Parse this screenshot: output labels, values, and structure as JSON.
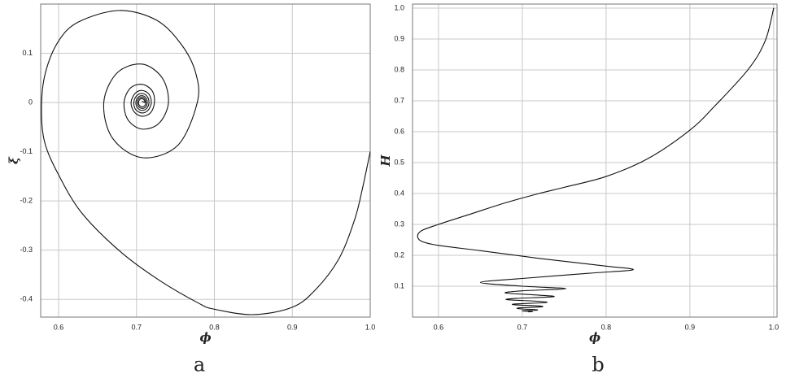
{
  "chart_data": [
    {
      "type": "line",
      "caption": "a",
      "x_label": "ϕ",
      "y_label": "ξ",
      "xlim": [
        0.577,
        1.0
      ],
      "ylim": [
        -0.436,
        0.2
      ],
      "xticks": [
        0.6,
        0.7,
        0.8,
        0.9,
        {
          "value": 1,
          "label": "1.0"
        }
      ],
      "yticks": [
        0.1,
        0,
        -0.1,
        -0.2,
        -0.3,
        -0.4
      ],
      "grid": true,
      "color": "#111",
      "x": [
        1.0,
        0.99,
        0.98,
        0.96,
        0.93,
        0.9,
        0.85,
        0.8,
        0.78,
        0.73,
        0.68,
        0.63,
        0.6,
        0.582,
        0.578,
        0.583,
        0.6,
        0.626,
        0.678,
        0.726,
        0.758,
        0.776,
        0.778,
        0.753,
        0.707,
        0.669,
        0.658,
        0.675,
        0.707,
        0.733,
        0.741,
        0.729,
        0.707,
        0.689,
        0.684,
        0.692,
        0.707,
        0.72,
        0.723,
        0.718,
        0.707,
        0.697,
        0.693,
        0.698,
        0.707,
        0.716,
        0.719,
        0.715,
        0.707,
        0.699,
        0.6966,
        0.7,
        0.707,
        0.7136,
        0.716,
        0.7132,
        0.707,
        0.7013,
        0.6992,
        0.7017,
        0.707,
        0.712,
        0.7138,
        0.7117,
        0.707,
        0.7027,
        0.7011,
        0.703,
        0.707,
        0.7107,
        0.712,
        0.7104,
        0.707,
        0.7038,
        0.7026,
        0.704,
        0.707,
        0.7098,
        0.7108,
        0.707
      ],
      "values": [
        -0.1,
        -0.175,
        -0.238,
        -0.317,
        -0.38,
        -0.416,
        -0.431,
        -0.42,
        -0.408,
        -0.362,
        -0.304,
        -0.225,
        -0.147,
        -0.08,
        -0.01,
        0.06,
        0.125,
        0.164,
        0.187,
        0.167,
        0.117,
        0.06,
        0,
        -0.087,
        -0.112,
        -0.072,
        0,
        0.06,
        0.078,
        0.05,
        0,
        -0.042,
        -0.054,
        -0.035,
        0,
        0.029,
        0.037,
        0.024,
        0,
        -0.021,
        -0.028,
        -0.019,
        0,
        0.018,
        0.0245,
        0.017,
        0,
        -0.0156,
        -0.0213,
        -0.0145,
        0,
        0.0134,
        0.0184,
        0.0126,
        0,
        -0.0117,
        -0.016,
        -0.0109,
        0,
        0.0101,
        0.0139,
        0.0094,
        0,
        -0.0089,
        -0.012,
        -0.0082,
        0,
        0.0077,
        0.0105,
        0.0071,
        0,
        -0.0064,
        -0.0089,
        -0.006,
        0,
        0.0056,
        0.0078,
        0.0052,
        0,
        0.003
      ]
    },
    {
      "type": "line",
      "caption": "b",
      "x_label": "ϕ",
      "y_label": "H",
      "xlim": [
        0.569,
        1.004
      ],
      "ylim": [
        0,
        1.013
      ],
      "xticks": [
        0.6,
        0.7,
        0.8,
        0.9,
        {
          "value": 1,
          "label": "1.0"
        }
      ],
      "yticks": [
        0.1,
        0.2,
        0.3,
        0.4,
        0.5,
        0.6,
        0.7,
        0.8,
        0.9,
        {
          "value": 1,
          "label": "1.0"
        }
      ],
      "grid": true,
      "color": "#111",
      "x": [
        1.0,
        0.99,
        0.97,
        0.93,
        0.9,
        0.85,
        0.8,
        0.75,
        0.72,
        0.68,
        0.64,
        0.6,
        0.58,
        0.575,
        0.58,
        0.6,
        0.65,
        0.72,
        0.8,
        0.832,
        0.78,
        0.7,
        0.65,
        0.7,
        0.752,
        0.7,
        0.68,
        0.72,
        0.737,
        0.69,
        0.683,
        0.72,
        0.728,
        0.695,
        0.69,
        0.72,
        0.722,
        0.697,
        0.696,
        0.716,
        0.716,
        0.7,
        0.712,
        0.707
      ],
      "values": [
        1.0,
        0.895,
        0.803,
        0.684,
        0.605,
        0.513,
        0.455,
        0.42,
        0.4,
        0.37,
        0.335,
        0.3,
        0.28,
        0.262,
        0.245,
        0.232,
        0.215,
        0.19,
        0.165,
        0.153,
        0.142,
        0.125,
        0.112,
        0.1,
        0.092,
        0.085,
        0.078,
        0.071,
        0.066,
        0.06,
        0.056,
        0.051,
        0.047,
        0.043,
        0.04,
        0.036,
        0.033,
        0.03,
        0.027,
        0.024,
        0.022,
        0.02,
        0.018,
        0.017
      ]
    }
  ]
}
